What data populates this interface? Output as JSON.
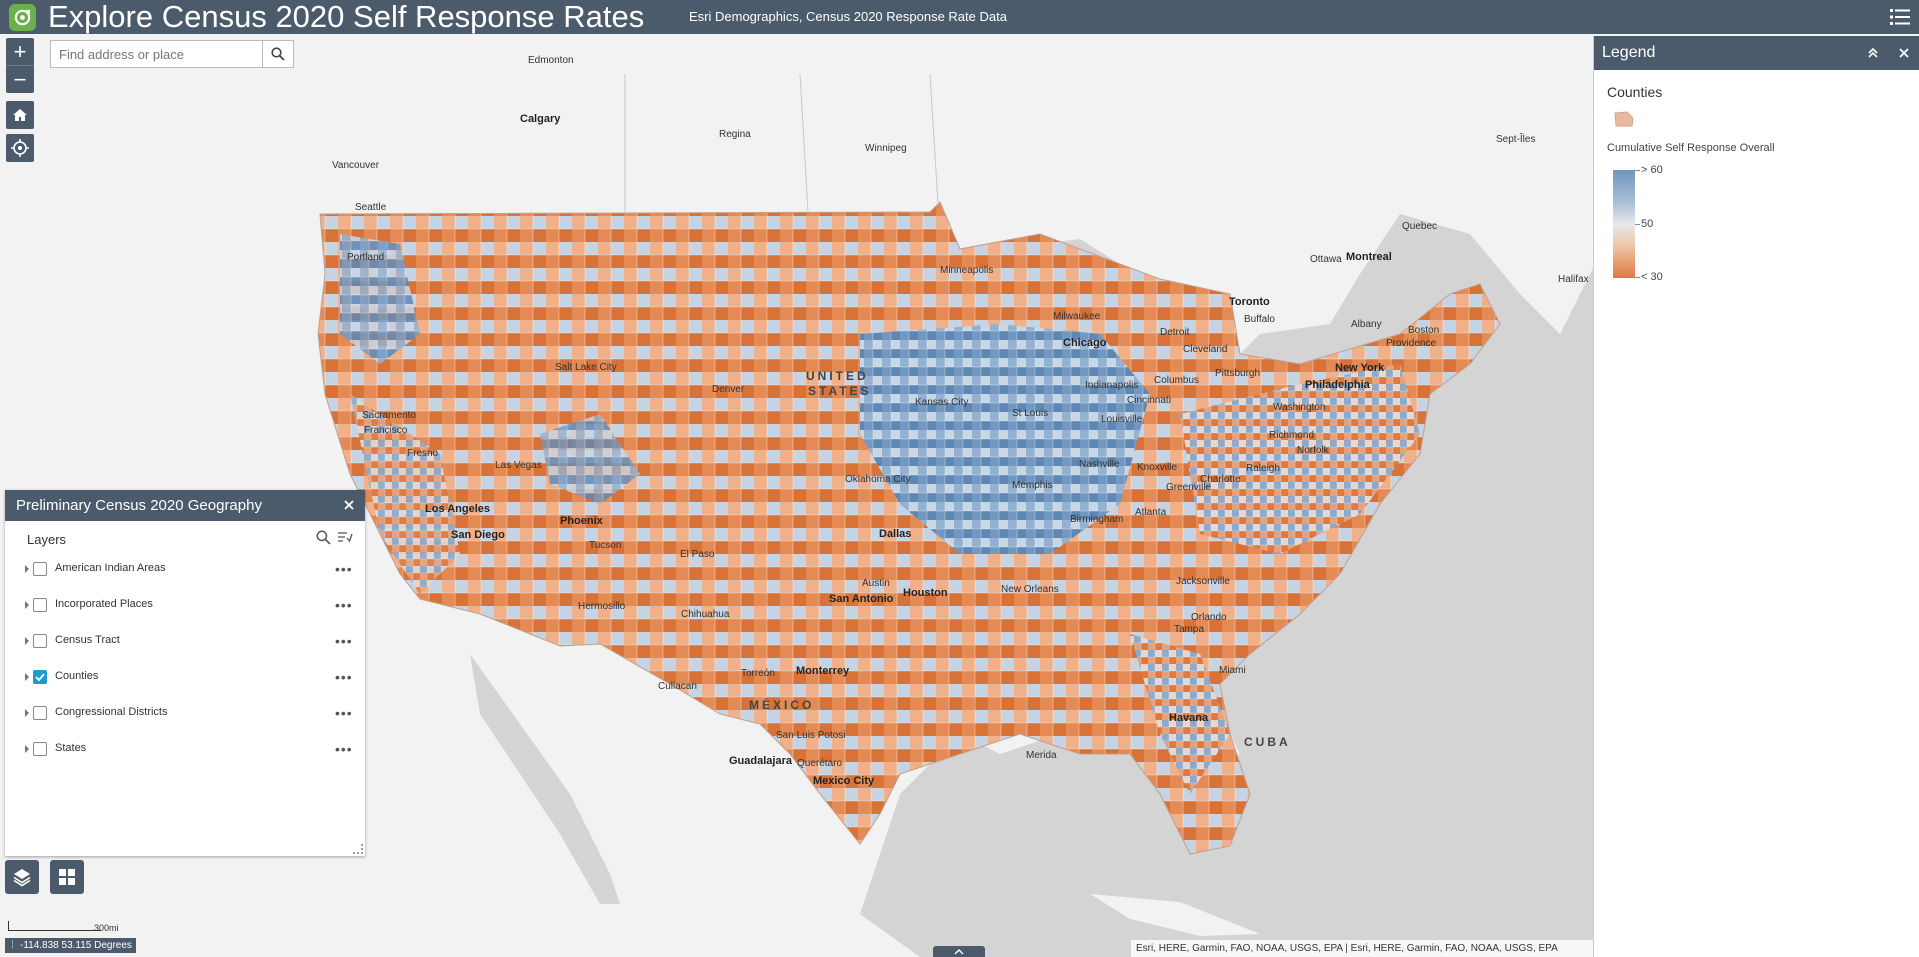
{
  "header": {
    "title": "Explore Census 2020 Self Response Rates",
    "subtitle": "Esri Demographics,    Census 2020 Response Rate Data"
  },
  "colors": {
    "bar": "#4c5b6b",
    "water": "#d4d4d4",
    "land": "#f2f2f2",
    "high_response": "#6f96bf",
    "mid_response": "#e8e8ea",
    "low_response": "#e0783f",
    "checkbox_on": "#1d9bd0"
  },
  "map_controls": {
    "zoom_in": "+",
    "zoom_out": "−",
    "home_icon": "home-icon",
    "locate_icon": "locate-icon"
  },
  "search": {
    "placeholder": "Find address or place",
    "icon": "search-icon"
  },
  "legend": {
    "title": "Legend",
    "layer_name": "Counties",
    "field_name": "Cumulative Self Response Overall",
    "ramp_labels": {
      "high": "> 60",
      "mid": "50",
      "low": "< 30"
    }
  },
  "layers_panel": {
    "title": "Preliminary Census 2020 Geography",
    "section_label": "Layers",
    "items": [
      {
        "label": "American Indian Areas",
        "checked": false
      },
      {
        "label": "Incorporated Places",
        "checked": false
      },
      {
        "label": "Census Tract",
        "checked": false
      },
      {
        "label": "Counties",
        "checked": true
      },
      {
        "label": "Congressional Districts",
        "checked": false
      },
      {
        "label": "States",
        "checked": false
      }
    ]
  },
  "map": {
    "country_labels": {
      "usa_line1": "UNITED",
      "usa_line2": "STATES",
      "mexico": "MÉXICO",
      "cuba": "CUBA"
    },
    "cities": {
      "edmonton": "Edmonton",
      "calgary": "Calgary",
      "regina": "Regina",
      "winnipeg": "Winnipeg",
      "vancouver": "Vancouver",
      "seattle": "Seattle",
      "portland": "Portland",
      "sacramento": "Sacramento",
      "francisco": "Francisco",
      "fresno": "Fresno",
      "las_vegas": "Las Vegas",
      "los_angeles": "Los Angeles",
      "san_diego": "San Diego",
      "salt_lake_city": "Salt Lake City",
      "denver": "Denver",
      "phoenix": "Phoenix",
      "tucson": "Tucson",
      "el_paso": "El Paso",
      "hermosillo": "Hermosillo",
      "chihuahua": "Chihuahua",
      "culiacan": "Culiacan",
      "torreon": "Torreón",
      "monterrey": "Monterrey",
      "san_luis_potosi": "San Luis Potosi",
      "guadalajara": "Guadalajara",
      "queretaro": "Querétaro",
      "mexico_city": "Mexico City",
      "merida": "Merida",
      "havana": "Havana",
      "minneapolis": "Minneapolis",
      "milwaukee": "Milwaukee",
      "chicago": "Chicago",
      "detroit": "Detroit",
      "kansas_city": "Kansas City",
      "st_louis": "St Louis",
      "oklahoma_city": "Oklahoma City",
      "dallas": "Dallas",
      "austin": "Austin",
      "san_antonio": "San Antonio",
      "houston": "Houston",
      "new_orleans": "New Orleans",
      "memphis": "Memphis",
      "nashville": "Nashville",
      "birmingham": "Birmingham",
      "atlanta": "Atlanta",
      "indianapolis": "Indianapolis",
      "cincinnati": "Cincinnati",
      "columbus": "Columbus",
      "louisville": "Louisville",
      "cleveland": "Cleveland",
      "pittsburgh": "Pittsburgh",
      "knoxville": "Knoxville",
      "greenville": "Greenville",
      "charlotte": "Charlotte",
      "raleigh": "Raleigh",
      "richmond": "Richmond",
      "norfolk": "Norfolk",
      "washington": "Washington",
      "philadelphia": "Philadelphia",
      "new_york": "New York",
      "albany": "Albany",
      "boston": "Boston",
      "providence": "Providence",
      "buffalo": "Buffalo",
      "toronto": "Toronto",
      "ottawa": "Ottawa",
      "montreal": "Montreal",
      "quebec": "Quebec",
      "sept_iles": "Sept-Îles",
      "halifax": "Halifax",
      "jacksonville": "Jacksonville",
      "orlando": "Orlando",
      "tampa": "Tampa",
      "miami": "Miami"
    },
    "scale_label": "300mi",
    "coordinates": "-114.838 53.115 Degrees",
    "attribution": "Esri, HERE, Garmin, FAO, NOAA, USGS, EPA | Esri, HERE, Garmin, FAO, NOAA, USGS, EPA"
  }
}
